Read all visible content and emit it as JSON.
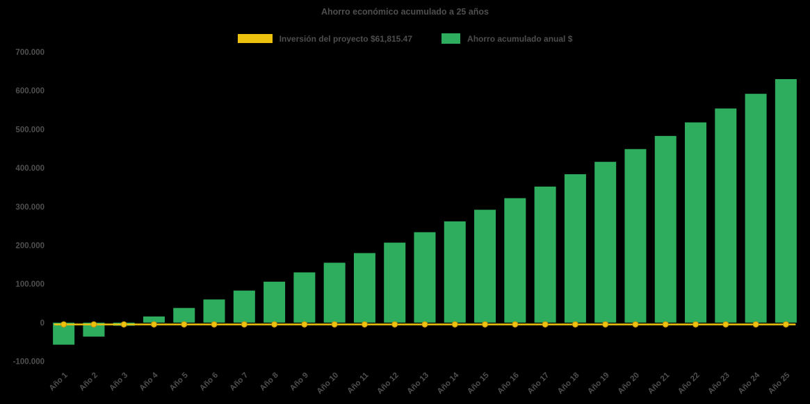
{
  "chart_data": {
    "type": "bar",
    "title": "Ahorro económico acumulado a 25 años",
    "background": "#000000",
    "text_color": "#4e4e4e",
    "grid": false,
    "legend_position": "top",
    "ylim": [
      -100000,
      700000
    ],
    "categories": [
      "Año 1",
      "Año 2",
      "Año 3",
      "Año 4",
      "Año 5",
      "Año 6",
      "Año 7",
      "Año 8",
      "Año 9",
      "Año 10",
      "Año 11",
      "Año 12",
      "Año 13",
      "Año 14",
      "Año 15",
      "Año 16",
      "Año 17",
      "Año 18",
      "Año 19",
      "Año 20",
      "Año 21",
      "Año 22",
      "Año 23",
      "Año 24",
      "Año 25"
    ],
    "series": [
      {
        "name": "Inversión del proyecto $61,815.47",
        "type": "line",
        "color": "#EDC20E",
        "marker": "circle",
        "constant_value": 0
      },
      {
        "name": "Ahorro acumulado anual $",
        "type": "bar",
        "color": "#2FAD5E",
        "values": [
          -57000,
          -36000,
          -8000,
          16000,
          38000,
          60000,
          83000,
          106000,
          130000,
          155000,
          180000,
          207000,
          234000,
          262000,
          292000,
          322000,
          352000,
          384000,
          416000,
          449000,
          483000,
          518000,
          554000,
          592000,
          630000
        ]
      }
    ],
    "y_ticks": [
      {
        "label": "700.000",
        "value": 700000
      },
      {
        "label": "600.000",
        "value": 600000
      },
      {
        "label": "500.000",
        "value": 500000
      },
      {
        "label": "400.000",
        "value": 400000
      },
      {
        "label": "300.000",
        "value": 300000
      },
      {
        "label": "200.000",
        "value": 200000
      },
      {
        "label": "100.000",
        "value": 100000
      },
      {
        "label": "0",
        "value": 0
      },
      {
        "label": "-100.000",
        "value": -100000
      }
    ]
  }
}
